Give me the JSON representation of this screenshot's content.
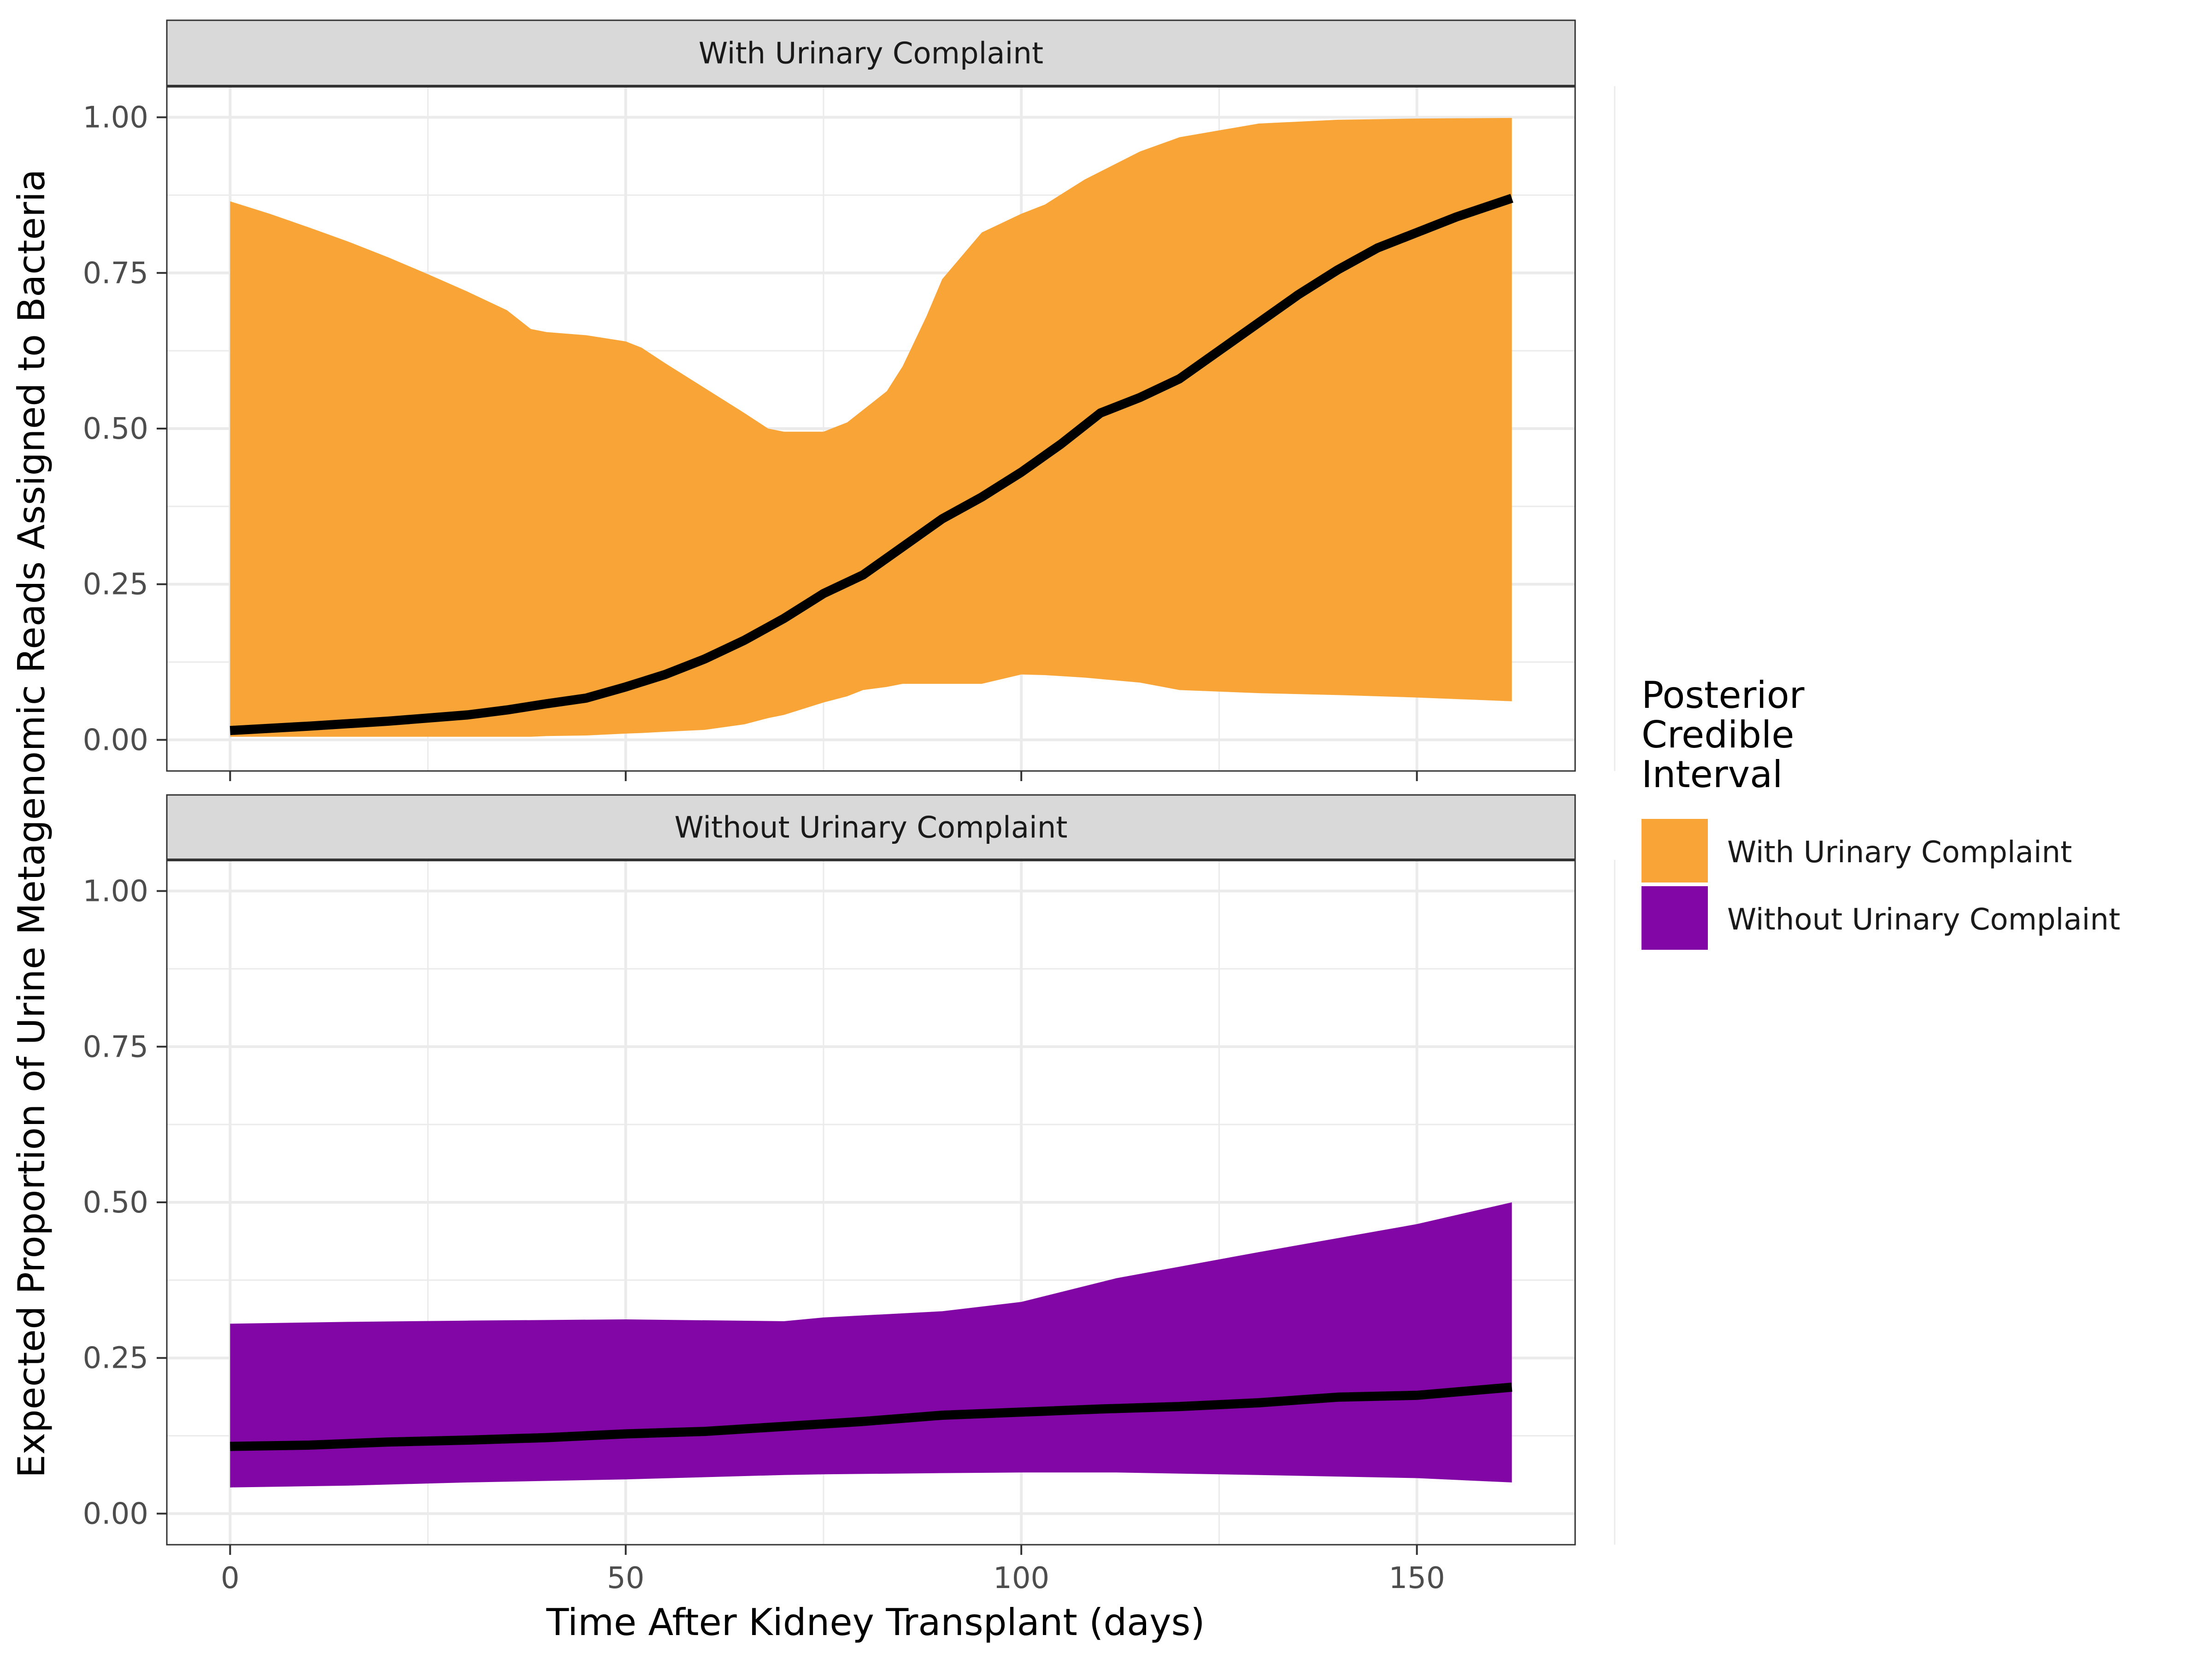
{
  "chart_data": {
    "type": "area",
    "xlabel": "Time After Kidney Transplant (days)",
    "ylabel": "Expected Proportion of Urine Metagenomic Reads Assigned to Bacteria",
    "xlim": [
      -8,
      170
    ],
    "ylim": [
      -0.05,
      1.05
    ],
    "x_ticks": [
      0,
      50,
      100,
      150
    ],
    "x_tick_labels": [
      "0",
      "50",
      "100",
      "150"
    ],
    "y_ticks": [
      0,
      0.25,
      0.5,
      0.75,
      1.0
    ],
    "y_tick_labels": [
      "0.00",
      "0.25",
      "0.50",
      "0.75",
      "1.00"
    ],
    "grid": true,
    "legend": {
      "title": [
        "Posterior",
        "Credible",
        "Interval"
      ],
      "placement": "right",
      "entries": [
        {
          "label": "With Urinary Complaint",
          "color": "#F9A436"
        },
        {
          "label": "Without Urinary Complaint",
          "color": "#8205A6"
        }
      ]
    },
    "panels": [
      {
        "title": "With Urinary Complaint",
        "fill_color": "#F9A436",
        "band": [
          {
            "x": 0,
            "lower": 0.005,
            "upper": 0.865
          },
          {
            "x": 5,
            "lower": 0.005,
            "upper": 0.845
          },
          {
            "x": 10,
            "lower": 0.005,
            "upper": 0.823
          },
          {
            "x": 15,
            "lower": 0.005,
            "upper": 0.8
          },
          {
            "x": 20,
            "lower": 0.005,
            "upper": 0.775
          },
          {
            "x": 25,
            "lower": 0.005,
            "upper": 0.748
          },
          {
            "x": 30,
            "lower": 0.005,
            "upper": 0.72
          },
          {
            "x": 35,
            "lower": 0.005,
            "upper": 0.69
          },
          {
            "x": 38,
            "lower": 0.005,
            "upper": 0.66
          },
          {
            "x": 40,
            "lower": 0.006,
            "upper": 0.655
          },
          {
            "x": 45,
            "lower": 0.007,
            "upper": 0.65
          },
          {
            "x": 50,
            "lower": 0.01,
            "upper": 0.64
          },
          {
            "x": 52,
            "lower": 0.011,
            "upper": 0.63
          },
          {
            "x": 55,
            "lower": 0.013,
            "upper": 0.605
          },
          {
            "x": 60,
            "lower": 0.016,
            "upper": 0.565
          },
          {
            "x": 65,
            "lower": 0.025,
            "upper": 0.525
          },
          {
            "x": 68,
            "lower": 0.035,
            "upper": 0.5
          },
          {
            "x": 70,
            "lower": 0.04,
            "upper": 0.495
          },
          {
            "x": 75,
            "lower": 0.06,
            "upper": 0.495
          },
          {
            "x": 78,
            "lower": 0.07,
            "upper": 0.51
          },
          {
            "x": 80,
            "lower": 0.08,
            "upper": 0.53
          },
          {
            "x": 83,
            "lower": 0.085,
            "upper": 0.56
          },
          {
            "x": 85,
            "lower": 0.09,
            "upper": 0.6
          },
          {
            "x": 88,
            "lower": 0.09,
            "upper": 0.68
          },
          {
            "x": 90,
            "lower": 0.09,
            "upper": 0.74
          },
          {
            "x": 95,
            "lower": 0.09,
            "upper": 0.815
          },
          {
            "x": 100,
            "lower": 0.105,
            "upper": 0.845
          },
          {
            "x": 103,
            "lower": 0.104,
            "upper": 0.86
          },
          {
            "x": 108,
            "lower": 0.1,
            "upper": 0.9
          },
          {
            "x": 115,
            "lower": 0.092,
            "upper": 0.945
          },
          {
            "x": 120,
            "lower": 0.08,
            "upper": 0.968
          },
          {
            "x": 130,
            "lower": 0.075,
            "upper": 0.99
          },
          {
            "x": 140,
            "lower": 0.072,
            "upper": 0.996
          },
          {
            "x": 150,
            "lower": 0.068,
            "upper": 0.998
          },
          {
            "x": 162,
            "lower": 0.062,
            "upper": 0.999
          }
        ],
        "median": [
          {
            "x": 0,
            "y": 0.015
          },
          {
            "x": 10,
            "y": 0.022
          },
          {
            "x": 20,
            "y": 0.03
          },
          {
            "x": 30,
            "y": 0.04
          },
          {
            "x": 35,
            "y": 0.048
          },
          {
            "x": 40,
            "y": 0.058
          },
          {
            "x": 45,
            "y": 0.067
          },
          {
            "x": 50,
            "y": 0.085
          },
          {
            "x": 55,
            "y": 0.105
          },
          {
            "x": 60,
            "y": 0.13
          },
          {
            "x": 65,
            "y": 0.16
          },
          {
            "x": 70,
            "y": 0.195
          },
          {
            "x": 75,
            "y": 0.235
          },
          {
            "x": 80,
            "y": 0.265
          },
          {
            "x": 85,
            "y": 0.31
          },
          {
            "x": 90,
            "y": 0.355
          },
          {
            "x": 95,
            "y": 0.39
          },
          {
            "x": 100,
            "y": 0.43
          },
          {
            "x": 105,
            "y": 0.475
          },
          {
            "x": 110,
            "y": 0.525
          },
          {
            "x": 115,
            "y": 0.55
          },
          {
            "x": 120,
            "y": 0.58
          },
          {
            "x": 125,
            "y": 0.625
          },
          {
            "x": 130,
            "y": 0.67
          },
          {
            "x": 135,
            "y": 0.715
          },
          {
            "x": 140,
            "y": 0.755
          },
          {
            "x": 145,
            "y": 0.79
          },
          {
            "x": 150,
            "y": 0.815
          },
          {
            "x": 155,
            "y": 0.84
          },
          {
            "x": 162,
            "y": 0.87
          }
        ]
      },
      {
        "title": "Without Urinary Complaint",
        "fill_color": "#8205A6",
        "band": [
          {
            "x": 0,
            "lower": 0.042,
            "upper": 0.305
          },
          {
            "x": 15,
            "lower": 0.045,
            "upper": 0.308
          },
          {
            "x": 30,
            "lower": 0.05,
            "upper": 0.31
          },
          {
            "x": 50,
            "lower": 0.055,
            "upper": 0.312
          },
          {
            "x": 70,
            "lower": 0.062,
            "upper": 0.309
          },
          {
            "x": 75,
            "lower": 0.063,
            "upper": 0.315
          },
          {
            "x": 90,
            "lower": 0.065,
            "upper": 0.325
          },
          {
            "x": 100,
            "lower": 0.066,
            "upper": 0.34
          },
          {
            "x": 112,
            "lower": 0.066,
            "upper": 0.378
          },
          {
            "x": 130,
            "lower": 0.062,
            "upper": 0.42
          },
          {
            "x": 150,
            "lower": 0.057,
            "upper": 0.465
          },
          {
            "x": 162,
            "lower": 0.05,
            "upper": 0.5
          }
        ],
        "median": [
          {
            "x": 0,
            "y": 0.108
          },
          {
            "x": 10,
            "y": 0.11
          },
          {
            "x": 20,
            "y": 0.115
          },
          {
            "x": 30,
            "y": 0.118
          },
          {
            "x": 40,
            "y": 0.122
          },
          {
            "x": 50,
            "y": 0.128
          },
          {
            "x": 60,
            "y": 0.132
          },
          {
            "x": 70,
            "y": 0.14
          },
          {
            "x": 80,
            "y": 0.148
          },
          {
            "x": 90,
            "y": 0.158
          },
          {
            "x": 100,
            "y": 0.163
          },
          {
            "x": 110,
            "y": 0.168
          },
          {
            "x": 120,
            "y": 0.172
          },
          {
            "x": 130,
            "y": 0.178
          },
          {
            "x": 140,
            "y": 0.187
          },
          {
            "x": 150,
            "y": 0.19
          },
          {
            "x": 162,
            "y": 0.203
          }
        ]
      }
    ]
  }
}
